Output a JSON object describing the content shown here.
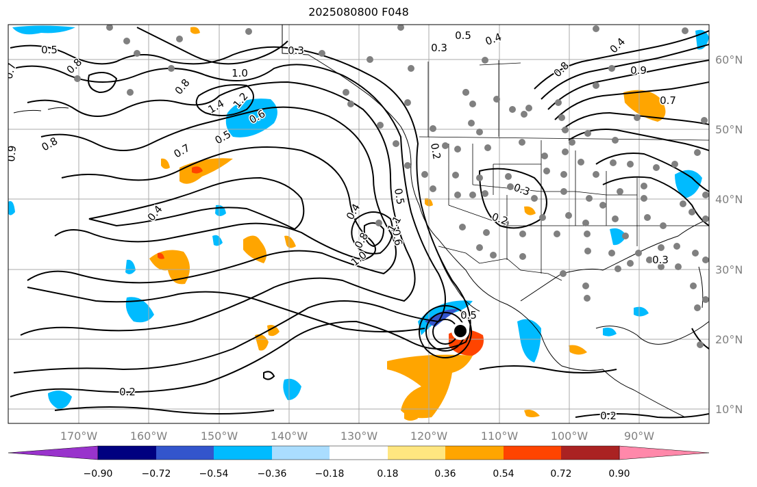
{
  "title": "2025080800 F048",
  "lon_labels": [
    "170°W",
    "160°W",
    "150°W",
    "140°W",
    "130°W",
    "120°W",
    "110°W",
    "100°W",
    "90°W"
  ],
  "lat_labels": [
    "60°N",
    "50°N",
    "40°N",
    "30°N",
    "20°N",
    "10°N"
  ],
  "colorbar": {
    "colors": [
      "#9933cc",
      "#000080",
      "#3355cc",
      "#00bbff",
      "#aaddff",
      "#ffffff",
      "#ffe680",
      "#ffa500",
      "#ff4400",
      "#aa2222",
      "#ff88aa"
    ],
    "tick_labels": [
      "−0.90",
      "−0.72",
      "−0.54",
      "−0.36",
      "−0.18",
      "0.18",
      "0.36",
      "0.54",
      "0.72",
      "0.90"
    ]
  },
  "contour_labels": [
    "0.5",
    "0.7",
    "0.8",
    "0.9",
    "0.8",
    "0.8",
    "1.0",
    "1.2",
    "1.4",
    "0.6",
    "0.5",
    "0.7",
    "0.4",
    "0.3",
    "0.5",
    "0.4",
    "0.3",
    "0.2",
    "0.4",
    "0.5",
    "0.6",
    "0.8",
    "0.7",
    "0.4",
    "0.9",
    "1.0",
    "1.1",
    "0.8",
    "0.3",
    "0.2",
    "0.5",
    "0.2",
    "0.2",
    "0.3"
  ],
  "hurricane_marker": "tropical-cyclone-center"
}
